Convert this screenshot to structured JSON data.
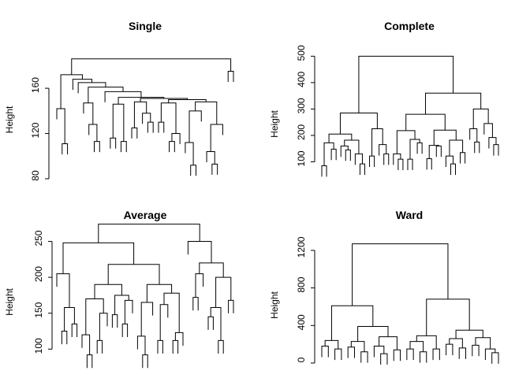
{
  "chart_data": [
    {
      "type": "dendrogram",
      "title": "Single",
      "ylabel": "Height",
      "ylim": [
        80,
        190
      ],
      "yticks": [
        80,
        120,
        160
      ],
      "tree": [
        186,
        [
          172,
          [
            142,
            [],
            [
              111,
              [],
              []
            ]
          ],
          [
            168,
            [],
            [
              165,
              [],
              [
                161,
                [
                  147,
                  [],
                  [
                    128,
                    [],
                    [
                      113,
                      [],
                      []
                    ]
                  ]
                ],
                [
                  157,
                  [],
                  [
                    152,
                    [
                      146,
                      [
                        116,
                        [],
                        []
                      ],
                      [
                        113,
                        [],
                        []
                      ]
                    ],
                    [
                      151,
                      [
                        148,
                        [
                          125,
                          [],
                          []
                        ],
                        [
                          138,
                          [],
                          [
                            130,
                            [],
                            []
                          ]
                        ]
                      ],
                      [
                        150,
                        [
                          147,
                          [
                            130,
                            [],
                            []
                          ],
                          [
                            120,
                            [
                              113,
                              [],
                              []
                            ],
                            []
                          ]
                        ],
                        [
                          148,
                          [
                            140,
                            [
                              112,
                              [],
                              [
                                92,
                                [],
                                []
                              ]
                            ],
                            []
                          ],
                          [
                            128,
                            [
                              104,
                              [],
                              [
                                93,
                                [],
                                []
                              ]
                            ],
                            []
                          ]
                        ]
                      ]
                    ]
                  ]
                ]
              ]
            ]
          ]
        ],
        [
          175,
          [],
          []
        ]
      ]
    },
    {
      "type": "dendrogram",
      "title": "Complete",
      "ylabel": "Height",
      "ylim": [
        0,
        510
      ],
      "yticks": [
        100,
        200,
        300,
        400,
        500
      ],
      "tree": [
        500,
        [
          285,
          [
            205,
            [
              172,
              [
                85,
                [],
                []
              ],
              [
                148,
                [],
                []
              ]
            ],
            [
              182,
              [
                160,
                [],
                [
                  145,
                  [],
                  []
                ]
              ],
              [
                130,
                [],
                [
                  92,
                  [],
                  []
                ]
              ]
            ]
          ],
          [
            225,
            [
              122,
              [],
              []
            ],
            [
              165,
              [],
              [
                130,
                [],
                []
              ]
            ]
          ]
        ],
        [
          360,
          [
            280,
            [
              218,
              [
                130,
                [],
                [
                  110,
                  [],
                  []
                ]
              ],
              [
                185,
                [
                  110,
                  [],
                  []
                ],
                [
                  172,
                  [],
                  []
                ]
              ]
            ],
            [
              220,
              [
                162,
                [
                  112,
                  [],
                  []
                ],
                [
                  160,
                  [],
                  []
                ]
              ],
              [
                182,
                [
                  122,
                  [],
                  [
                    92,
                    [],
                    []
                  ]
                ],
                [
                  135,
                  [],
                  []
                ]
              ]
            ]
          ],
          [
            300,
            [
              225,
              [],
              [
                175,
                [],
                []
              ]
            ],
            [
              245,
              [],
              [
                192,
                [],
                [
                  165,
                  [],
                  []
                ]
              ]
            ]
          ]
        ]
      ]
    },
    {
      "type": "dendrogram",
      "title": "Average",
      "ylabel": "Height",
      "ylim": [
        62,
        278
      ],
      "yticks": [
        100,
        150,
        200,
        250
      ],
      "tree": [
        274,
        [
          248,
          [
            205,
            [],
            [
              158,
              [
                125,
                [],
                []
              ],
              [
                135,
                [],
                []
              ]
            ]
          ],
          [
            218,
            [
              190,
              [
                170,
                [
                  120,
                  [],
                  [
                    92,
                    [],
                    []
                  ]
                ],
                [
                  150,
                  [
                    112,
                    [],
                    []
                  ],
                  []
                ]
              ],
              [
                175,
                [
                  148,
                  [],
                  []
                ],
                [
                  168,
                  [
                    135,
                    [],
                    []
                  ],
                  []
                ]
              ]
            ],
            [
              190,
              [
                165,
                [
                  118,
                  [],
                  [
                    92,
                    [],
                    []
                  ]
                ],
                []
              ],
              [
                178,
                [
                  162,
                  [
                    112,
                    [],
                    []
                  ],
                  []
                ],
                [
                  123,
                  [
                    112,
                    [],
                    []
                  ],
                  []
                ]
              ]
            ]
          ]
        ],
        [
          250,
          [],
          [
            220,
            [
              205,
              [
                172,
                [],
                []
              ],
              []
            ],
            [
              200,
              [
                158,
                [
                  145,
                  [],
                  []
                ],
                [
                  112,
                  [],
                  []
                ]
              ],
              [
                168,
                [],
                []
              ]
            ]
          ]
        ]
      ]
    },
    {
      "type": "dendrogram",
      "title": "Ward",
      "ylabel": "Height",
      "ylim": [
        0,
        1300
      ],
      "yticks": [
        0,
        400,
        800,
        1200
      ],
      "tree": [
        1270,
        [
          610,
          [
            240,
            [
              180,
              [],
              []
            ],
            [
              150,
              [],
              []
            ]
          ],
          [
            390,
            [
              230,
              [
                170,
                [],
                []
              ],
              [
                120,
                [],
                []
              ]
            ],
            [
              280,
              [
                180,
                [],
                [
                  100,
                  [],
                  []
                ]
              ],
              [
                140,
                [],
                []
              ]
            ]
          ]
        ],
        [
          680,
          [
            290,
            [
              230,
              [
                150,
                [],
                []
              ],
              [
                120,
                [],
                []
              ]
            ],
            [
              150,
              [],
              []
            ]
          ],
          [
            350,
            [
              260,
              [
                200,
                [],
                []
              ],
              [
                160,
                [],
                []
              ]
            ],
            [
              270,
              [
                190,
                [],
                []
              ],
              [
                150,
                [],
                [
                  110,
                  [],
                  []
                ]
              ]
            ]
          ]
        ]
      ]
    }
  ]
}
